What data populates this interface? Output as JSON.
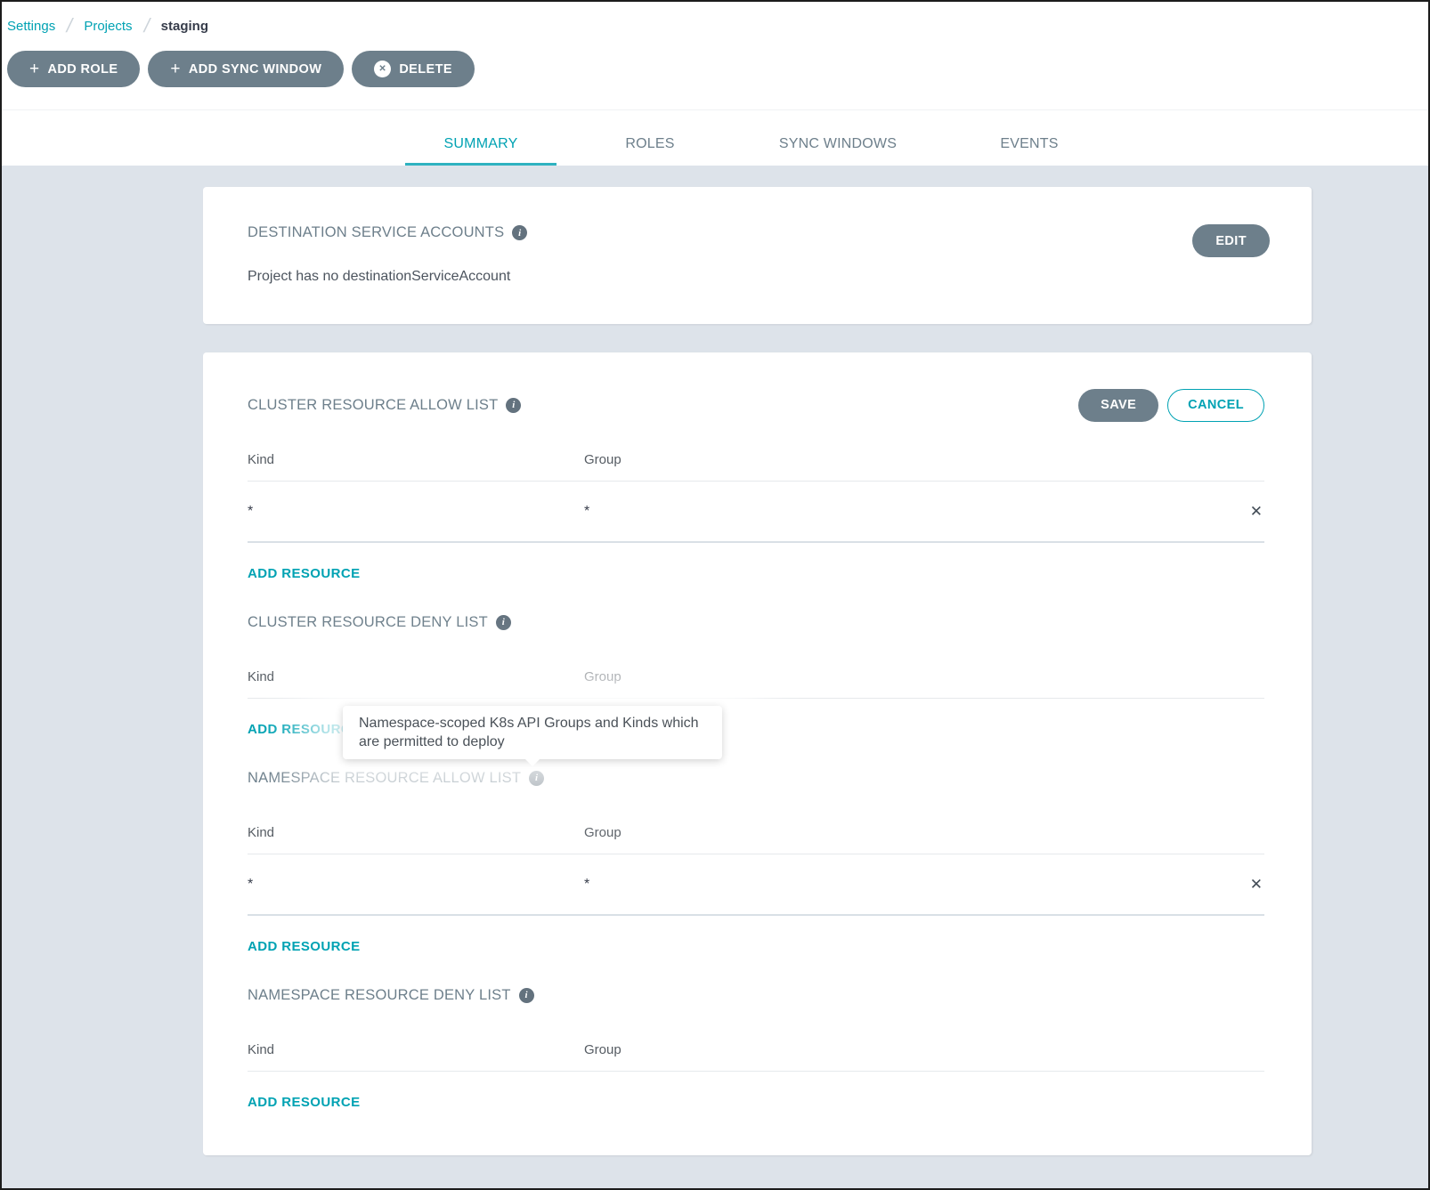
{
  "colors": {
    "accent": "#00A2B3",
    "button_gray": "#6D7F8B",
    "page_background": "#DDE3EA"
  },
  "breadcrumb": {
    "separator": "/",
    "items": [
      {
        "label": "Settings"
      },
      {
        "label": "Projects"
      },
      {
        "label": "staging"
      }
    ]
  },
  "toolbar": {
    "plus_icon": "+",
    "delete_icon": "✕",
    "add_role_label": "ADD ROLE",
    "add_sync_window_label": "ADD SYNC WINDOW",
    "delete_label": "DELETE"
  },
  "tabs": [
    {
      "label": "SUMMARY",
      "active": true
    },
    {
      "label": "ROLES",
      "active": false
    },
    {
      "label": "SYNC WINDOWS",
      "active": false
    },
    {
      "label": "EVENTS",
      "active": false
    }
  ],
  "destination_card": {
    "title": "DESTINATION SERVICE ACCOUNTS",
    "info_icon": "i",
    "empty_message": "Project has no destinationServiceAccount",
    "edit_label": "EDIT"
  },
  "resource_card": {
    "save_label": "SAVE",
    "cancel_label": "CANCEL",
    "add_resource_label": "ADD RESOURCE",
    "close_icon": "✕",
    "info_icon": "i",
    "columns": {
      "kind": "Kind",
      "group": "Group"
    },
    "sections": [
      {
        "title": "CLUSTER RESOURCE ALLOW LIST",
        "rows": [
          {
            "kind": "*",
            "group": "*"
          }
        ]
      },
      {
        "title": "CLUSTER RESOURCE DENY LIST",
        "rows": []
      },
      {
        "title": "NAMESPACE RESOURCE ALLOW LIST",
        "rows": [
          {
            "kind": "*",
            "group": "*"
          }
        ]
      },
      {
        "title": "NAMESPACE RESOURCE DENY LIST",
        "rows": []
      }
    ]
  },
  "tooltip": {
    "text": "Namespace-scoped K8s API Groups and Kinds which are permitted to deploy"
  }
}
